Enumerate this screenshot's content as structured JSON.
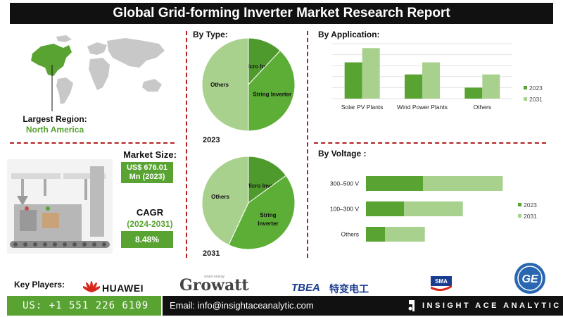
{
  "header": {
    "title": "Global Grid-forming Inverter Market Research Report"
  },
  "region": {
    "label": "Largest Region:",
    "value": "North America"
  },
  "market_size": {
    "label": "Market Size:",
    "value_line1": "US$ 676.01",
    "value_line2": "Mn (2023)"
  },
  "cagr": {
    "label": "CAGR",
    "period": "(2024-2031)",
    "value": "8.48%"
  },
  "sections": {
    "type": "By Type:",
    "application": "By Application:",
    "voltage": "By Voltage :"
  },
  "key_players": {
    "label": "Key Players:",
    "huawei": "HUAWEI",
    "growatt": "Growatt",
    "growatt_tag": "smart energy",
    "tbea": "TBEA",
    "tbea_cn": "特变电工",
    "sma": "SMA",
    "ge": "GE"
  },
  "footer": {
    "phone": "US: +1 551 226 6109",
    "email": "Email: info@insightaceanalytic.com",
    "brand": "INSIGHT ACE ANALYTIC"
  },
  "colors": {
    "dark_green": "#58a332",
    "mid_green": "#8cc063",
    "light_green": "#a9d18e",
    "accent_red": "#b22222"
  },
  "chart_data": [
    {
      "type": "pie",
      "title": "By Type:",
      "year": "2023",
      "labels": [
        "Micro Inverter",
        "String Inverter",
        "Others"
      ],
      "values": [
        12,
        38,
        50
      ]
    },
    {
      "type": "pie",
      "year": "2031",
      "labels": [
        "Micro Inverter",
        "String Inverter",
        "Others"
      ],
      "values": [
        15,
        42,
        43
      ]
    },
    {
      "type": "bar",
      "title": "By Application:",
      "categories": [
        "Solar PV Plants",
        "Wind Power Plants",
        "Others"
      ],
      "series": [
        {
          "name": "2023",
          "values": [
            3.3,
            2.2,
            1.0
          ]
        },
        {
          "name": "2031",
          "values": [
            4.6,
            3.3,
            2.2
          ]
        }
      ],
      "ylim": [
        0,
        5
      ],
      "legend": "right"
    },
    {
      "type": "bar",
      "orientation": "horizontal",
      "stacked": true,
      "title": "By Voltage :",
      "categories": [
        "300–500 V",
        "100–300 V",
        "Others"
      ],
      "series": [
        {
          "name": "2023",
          "values": [
            3.0,
            2.0,
            1.0
          ]
        },
        {
          "name": "2031",
          "values": [
            4.2,
            3.1,
            2.1
          ]
        }
      ],
      "xlim": [
        0,
        8
      ],
      "legend": "right"
    }
  ]
}
